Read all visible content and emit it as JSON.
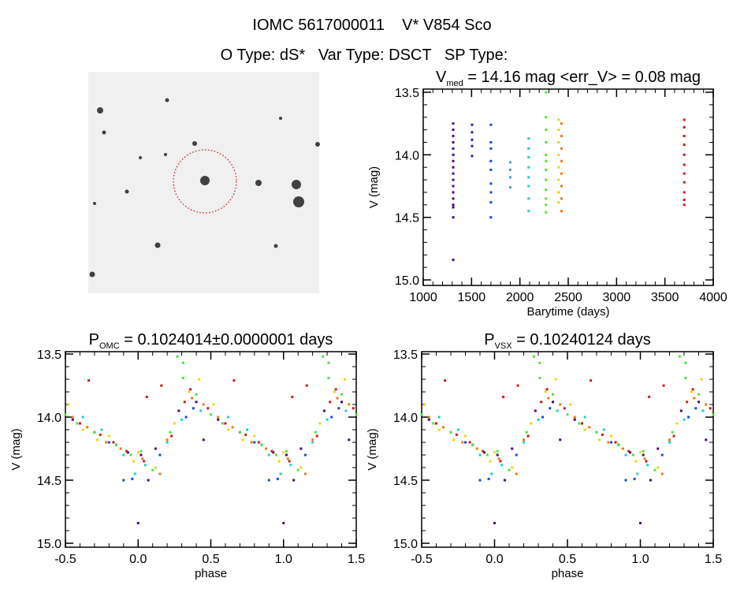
{
  "header": {
    "line1": "IOMC 5617000011    V* V854 Sco",
    "line2": "O Type: dS*   Var Type: DSCT   SP Type:"
  },
  "thumbnail": {
    "description_label": ""
  },
  "chart_data": [
    {
      "type": "scatter",
      "title": {
        "main": "V",
        "sub": "med",
        "rest": " = 14.16 mag <err_V> = 0.08 mag"
      },
      "xlabel": "Barytime (days)",
      "ylabel": "V (mag)",
      "xlim": [
        1000,
        4000
      ],
      "ylim": [
        15.0,
        13.5
      ],
      "y_inverted": true,
      "xticks": [
        "1000",
        "1500",
        "2000",
        "2500",
        "3000",
        "3500",
        "4000"
      ],
      "yticks": [
        "13.5",
        "14.0",
        "14.5",
        "15.0"
      ],
      "series": [
        {
          "color": "#4b0a78",
          "x": 1310,
          "mags": [
            13.75,
            13.8,
            13.85,
            13.9,
            13.95,
            14.0,
            14.05,
            14.1,
            14.15,
            14.2,
            14.25,
            14.3,
            14.35,
            14.4,
            14.42,
            14.5,
            14.84
          ]
        },
        {
          "color": "#2a1fa8",
          "x": 1505,
          "mags": [
            13.76,
            13.82,
            13.88,
            13.93,
            14.01
          ]
        },
        {
          "color": "#1a48d8",
          "x": 1700,
          "mags": [
            13.76,
            13.9,
            13.95,
            14.05,
            14.12,
            14.23,
            14.3,
            14.38,
            14.5
          ]
        },
        {
          "color": "#3aa0e0",
          "x": 1900,
          "mags": [
            14.06,
            14.12,
            14.18,
            14.26
          ]
        },
        {
          "color": "#20d0c8",
          "x": 2090,
          "mags": [
            13.87,
            13.95,
            14.02,
            14.1,
            14.18,
            14.25,
            14.35,
            14.45
          ]
        },
        {
          "color": "#50e040",
          "x": 2270,
          "mags": [
            13.5,
            13.7,
            13.8,
            13.9,
            14.0,
            14.05,
            14.12,
            14.2,
            14.28,
            14.35,
            14.4,
            14.46
          ]
        },
        {
          "color": "#e8d810",
          "x": 2400,
          "mags": [
            13.72,
            13.8,
            13.9,
            14.0,
            14.1,
            14.2,
            14.3,
            14.38
          ]
        },
        {
          "color": "#f07810",
          "x": 2430,
          "mags": [
            13.75,
            13.85,
            13.95,
            14.05,
            14.15,
            14.25,
            14.35,
            14.45
          ]
        },
        {
          "color": "#d01818",
          "x": 3700,
          "mags": [
            13.72,
            13.78,
            13.85,
            13.92,
            14.0,
            14.08,
            14.15,
            14.22,
            14.3,
            14.36,
            14.4
          ]
        }
      ]
    },
    {
      "type": "scatter",
      "title": {
        "main": "P",
        "sub": "OMC",
        "rest": " = 0.1024014±0.0000001 days"
      },
      "xlabel": "phase",
      "ylabel": "V (mag)",
      "xlim": [
        -0.5,
        1.5
      ],
      "ylim": [
        15.0,
        13.5
      ],
      "y_inverted": true,
      "xticks": [
        "-0.5",
        "0.0",
        "0.5",
        "1.0",
        "1.5"
      ],
      "yticks": [
        "13.5",
        "14.0",
        "14.5",
        "15.0"
      ],
      "series": [
        {
          "color": "#4b0a78",
          "points": [
            [
              0.02,
              14.3
            ],
            [
              0.12,
              14.25
            ],
            [
              0.28,
              13.95
            ],
            [
              0.4,
              13.88
            ],
            [
              0.55,
              14.02
            ],
            [
              0.7,
              14.12
            ],
            [
              0.85,
              14.22
            ],
            [
              0.93,
              14.28
            ],
            [
              0.07,
              14.5
            ],
            [
              0.0,
              14.84
            ],
            [
              0.45,
              14.18
            ]
          ]
        },
        {
          "color": "#1a48d8",
          "points": [
            [
              0.9,
              14.5
            ],
            [
              0.96,
              14.49
            ],
            [
              0.33,
              14.0
            ],
            [
              0.15,
              14.3
            ],
            [
              0.6,
              14.05
            ],
            [
              0.38,
              13.93
            ],
            [
              0.8,
              14.2
            ]
          ]
        },
        {
          "color": "#20d0c8",
          "points": [
            [
              0.98,
              14.45
            ],
            [
              0.2,
              14.2
            ],
            [
              0.43,
              13.95
            ],
            [
              0.62,
              14.0
            ],
            [
              0.9,
              14.3
            ],
            [
              0.05,
              14.38
            ],
            [
              0.75,
              14.1
            ],
            [
              0.3,
              14.02
            ]
          ]
        },
        {
          "color": "#50e040",
          "points": [
            [
              0.27,
              13.52
            ],
            [
              0.31,
              13.57
            ],
            [
              0.31,
              13.69
            ],
            [
              0.5,
              13.98
            ],
            [
              0.1,
              14.42
            ],
            [
              0.95,
              14.3
            ],
            [
              0.7,
              14.12
            ],
            [
              0.58,
              14.05
            ],
            [
              0.85,
              14.22
            ],
            [
              0.22,
              14.12
            ],
            [
              0.4,
              13.82
            ],
            [
              0.02,
              14.27
            ]
          ]
        },
        {
          "color": "#e8d810",
          "points": [
            [
              0.42,
              13.7
            ],
            [
              0.35,
              13.8
            ],
            [
              0.12,
              14.4
            ],
            [
              0.62,
              14.1
            ],
            [
              0.8,
              14.15
            ],
            [
              0.97,
              14.35
            ],
            [
              0.25,
              14.05
            ],
            [
              0.52,
              13.9
            ],
            [
              0.0,
              14.28
            ],
            [
              0.72,
              14.18
            ]
          ]
        },
        {
          "color": "#f07810",
          "points": [
            [
              0.15,
              14.45
            ],
            [
              0.37,
              13.85
            ],
            [
              0.45,
              13.9
            ],
            [
              0.65,
              14.08
            ],
            [
              0.88,
              14.25
            ],
            [
              0.03,
              14.33
            ],
            [
              0.2,
              14.18
            ],
            [
              0.78,
              14.2
            ],
            [
              0.55,
              14.0
            ]
          ]
        },
        {
          "color": "#d01818",
          "points": [
            [
              0.16,
              13.75
            ],
            [
              0.66,
              13.71
            ],
            [
              0.06,
              13.84
            ],
            [
              0.36,
              13.78
            ],
            [
              0.48,
              13.93
            ],
            [
              0.6,
              14.05
            ],
            [
              0.74,
              14.14
            ],
            [
              0.92,
              14.27
            ],
            [
              0.04,
              14.35
            ],
            [
              0.23,
              14.15
            ],
            [
              0.32,
              13.88
            ],
            [
              0.83,
              14.2
            ]
          ]
        }
      ]
    },
    {
      "type": "scatter",
      "title": {
        "main": "P",
        "sub": "VSX",
        "rest": " = 0.10240124 days"
      },
      "xlabel": "phase",
      "ylabel": "V (mag)",
      "xlim": [
        -0.5,
        1.5
      ],
      "ylim": [
        15.0,
        13.5
      ],
      "y_inverted": true,
      "xticks": [
        "-0.5",
        "0.0",
        "0.5",
        "1.0",
        "1.5"
      ],
      "yticks": [
        "13.5",
        "14.0",
        "14.5",
        "15.0"
      ],
      "series": [
        {
          "color": "#4b0a78",
          "points": [
            [
              0.02,
              14.3
            ],
            [
              0.12,
              14.25
            ],
            [
              0.28,
              13.95
            ],
            [
              0.4,
              13.88
            ],
            [
              0.55,
              14.02
            ],
            [
              0.7,
              14.12
            ],
            [
              0.85,
              14.22
            ],
            [
              0.93,
              14.28
            ],
            [
              0.07,
              14.5
            ],
            [
              0.0,
              14.84
            ],
            [
              0.45,
              14.18
            ]
          ]
        },
        {
          "color": "#1a48d8",
          "points": [
            [
              0.9,
              14.5
            ],
            [
              0.96,
              14.49
            ],
            [
              0.33,
              14.0
            ],
            [
              0.15,
              14.3
            ],
            [
              0.6,
              14.05
            ],
            [
              0.38,
              13.93
            ],
            [
              0.8,
              14.2
            ]
          ]
        },
        {
          "color": "#20d0c8",
          "points": [
            [
              0.98,
              14.45
            ],
            [
              0.2,
              14.2
            ],
            [
              0.43,
              13.95
            ],
            [
              0.62,
              14.0
            ],
            [
              0.9,
              14.3
            ],
            [
              0.05,
              14.38
            ],
            [
              0.75,
              14.1
            ],
            [
              0.3,
              14.02
            ]
          ]
        },
        {
          "color": "#50e040",
          "points": [
            [
              0.27,
              13.52
            ],
            [
              0.31,
              13.57
            ],
            [
              0.31,
              13.69
            ],
            [
              0.5,
              13.98
            ],
            [
              0.1,
              14.42
            ],
            [
              0.95,
              14.3
            ],
            [
              0.7,
              14.12
            ],
            [
              0.58,
              14.05
            ],
            [
              0.85,
              14.22
            ],
            [
              0.22,
              14.12
            ],
            [
              0.4,
              13.82
            ],
            [
              0.02,
              14.27
            ]
          ]
        },
        {
          "color": "#e8d810",
          "points": [
            [
              0.42,
              13.7
            ],
            [
              0.35,
              13.8
            ],
            [
              0.12,
              14.4
            ],
            [
              0.62,
              14.1
            ],
            [
              0.8,
              14.15
            ],
            [
              0.97,
              14.35
            ],
            [
              0.25,
              14.05
            ],
            [
              0.52,
              13.9
            ],
            [
              0.0,
              14.28
            ],
            [
              0.72,
              14.18
            ]
          ]
        },
        {
          "color": "#f07810",
          "points": [
            [
              0.15,
              14.45
            ],
            [
              0.37,
              13.85
            ],
            [
              0.45,
              13.9
            ],
            [
              0.65,
              14.08
            ],
            [
              0.88,
              14.25
            ],
            [
              0.03,
              14.33
            ],
            [
              0.2,
              14.18
            ],
            [
              0.78,
              14.2
            ],
            [
              0.55,
              14.0
            ]
          ]
        },
        {
          "color": "#d01818",
          "points": [
            [
              0.16,
              13.75
            ],
            [
              0.66,
              13.71
            ],
            [
              0.06,
              13.84
            ],
            [
              0.36,
              13.78
            ],
            [
              0.48,
              13.93
            ],
            [
              0.6,
              14.05
            ],
            [
              0.74,
              14.14
            ],
            [
              0.92,
              14.27
            ],
            [
              0.04,
              14.35
            ],
            [
              0.23,
              14.15
            ],
            [
              0.32,
              13.88
            ],
            [
              0.83,
              14.2
            ]
          ]
        }
      ]
    }
  ]
}
